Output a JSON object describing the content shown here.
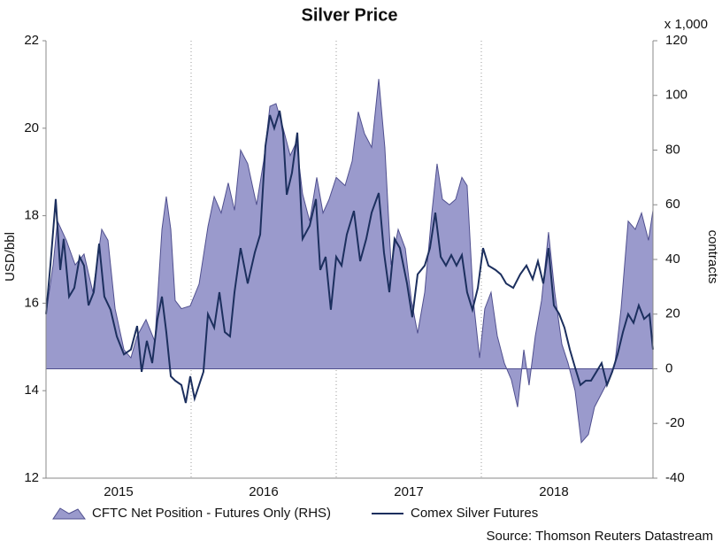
{
  "chart_data": {
    "type": "combo",
    "title": "Silver Price",
    "ylabel": "USD/bbl",
    "y2label": "contracts",
    "y2unit": "x 1,000",
    "source": "Source: Thomson Reuters Datastream",
    "xlim": [
      2015,
      2019.183
    ],
    "xticks": [
      2015,
      2016,
      2017,
      2018
    ],
    "ylim": [
      12,
      22
    ],
    "yticks": [
      12,
      14,
      16,
      18,
      20,
      22
    ],
    "y2lim": [
      -40,
      120
    ],
    "y2ticks": [
      -40,
      -20,
      0,
      20,
      40,
      60,
      80,
      100,
      120
    ],
    "grid": "x",
    "legend": "bottom",
    "series": [
      {
        "name": "CFTC Net Position - Futures Only (RHS)",
        "type": "area",
        "axis": "y2",
        "color": "#9a9acc",
        "edge": "#50508f",
        "x": [
          2015.0,
          2015.049,
          2015.079,
          2015.14,
          2015.201,
          2015.262,
          2015.323,
          2015.384,
          2015.427,
          2015.476,
          2015.537,
          2015.585,
          2015.628,
          2015.689,
          2015.75,
          2015.799,
          2015.829,
          2015.86,
          2015.89,
          2015.933,
          2015.994,
          2016.055,
          2016.116,
          2016.159,
          2016.207,
          2016.256,
          2016.299,
          2016.341,
          2016.39,
          2016.451,
          2016.5,
          2016.543,
          2016.585,
          2016.634,
          2016.683,
          2016.726,
          2016.768,
          2016.817,
          2016.866,
          2016.909,
          2016.951,
          2017.0,
          2017.061,
          2017.11,
          2017.152,
          2017.195,
          2017.244,
          2017.293,
          2017.335,
          2017.378,
          2017.427,
          2017.476,
          2017.518,
          2017.561,
          2017.61,
          2017.659,
          2017.695,
          2017.732,
          2017.78,
          2017.823,
          2017.866,
          2017.902,
          2017.945,
          2017.988,
          2018.024,
          2018.067,
          2018.11,
          2018.159,
          2018.207,
          2018.25,
          2018.293,
          2018.329,
          2018.372,
          2018.415,
          2018.463,
          2018.506,
          2018.555,
          2018.598,
          2018.646,
          2018.689,
          2018.738,
          2018.78,
          2018.829,
          2018.878,
          2018.921,
          2018.963,
          2019.012,
          2019.061,
          2019.104,
          2019.152,
          2019.183
        ],
        "values": [
          20,
          38,
          54,
          47,
          38,
          42,
          28,
          51,
          47,
          22,
          7,
          4,
          12,
          18,
          10,
          51,
          63,
          51,
          25,
          22,
          23,
          31,
          52,
          63,
          57,
          68,
          58,
          80,
          75,
          60,
          76,
          96,
          97,
          88,
          78,
          83,
          64,
          54,
          70,
          57,
          62,
          70,
          67,
          76,
          94,
          86,
          81,
          106,
          81,
          38,
          51,
          44,
          25,
          13,
          28,
          57,
          75,
          62,
          60,
          62,
          70,
          67,
          25,
          4,
          22,
          28,
          12,
          2,
          -4,
          -14,
          7,
          -6,
          12,
          25,
          50,
          28,
          9,
          2,
          -8,
          -27,
          -24,
          -14,
          -9,
          -4,
          2,
          22,
          54,
          51,
          57,
          47,
          58
        ]
      },
      {
        "name": "Comex Silver Futures",
        "type": "line",
        "axis": "y",
        "color": "#1c2f5e",
        "x": [
          2015.0,
          2015.03,
          2015.067,
          2015.098,
          2015.122,
          2015.159,
          2015.195,
          2015.232,
          2015.262,
          2015.293,
          2015.329,
          2015.366,
          2015.402,
          2015.445,
          2015.488,
          2015.537,
          2015.585,
          2015.628,
          2015.659,
          2015.695,
          2015.732,
          2015.768,
          2015.799,
          2015.829,
          2015.86,
          2015.89,
          2015.933,
          2015.963,
          2015.994,
          2016.024,
          2016.055,
          2016.085,
          2016.116,
          2016.159,
          2016.195,
          2016.232,
          2016.268,
          2016.299,
          2016.341,
          2016.39,
          2016.439,
          2016.476,
          2016.512,
          2016.543,
          2016.573,
          2016.61,
          2016.634,
          2016.659,
          2016.695,
          2016.732,
          2016.768,
          2016.817,
          2016.86,
          2016.89,
          2016.927,
          2016.963,
          2017.0,
          2017.037,
          2017.073,
          2017.122,
          2017.165,
          2017.207,
          2017.244,
          2017.293,
          2017.329,
          2017.366,
          2017.402,
          2017.439,
          2017.488,
          2017.524,
          2017.561,
          2017.61,
          2017.646,
          2017.683,
          2017.72,
          2017.756,
          2017.793,
          2017.829,
          2017.866,
          2017.902,
          2017.939,
          2017.976,
          2018.012,
          2018.049,
          2018.098,
          2018.134,
          2018.171,
          2018.22,
          2018.268,
          2018.311,
          2018.354,
          2018.39,
          2018.427,
          2018.463,
          2018.5,
          2018.537,
          2018.573,
          2018.61,
          2018.646,
          2018.683,
          2018.72,
          2018.756,
          2018.793,
          2018.829,
          2018.866,
          2018.902,
          2018.939,
          2018.976,
          2019.012,
          2019.049,
          2019.085,
          2019.122,
          2019.159,
          2019.183
        ],
        "values": [
          15.75,
          16.86,
          18.38,
          16.76,
          17.47,
          16.15,
          16.35,
          17.06,
          16.86,
          15.95,
          16.25,
          17.36,
          16.15,
          15.85,
          15.24,
          14.83,
          14.94,
          15.48,
          14.43,
          15.14,
          14.63,
          15.64,
          16.15,
          15.34,
          14.33,
          14.23,
          14.13,
          13.72,
          14.33,
          13.82,
          14.13,
          14.43,
          15.75,
          15.44,
          16.25,
          15.34,
          15.24,
          16.25,
          17.26,
          16.45,
          17.16,
          17.57,
          19.59,
          20.3,
          20.0,
          20.4,
          19.9,
          18.48,
          18.98,
          19.9,
          17.47,
          17.77,
          18.38,
          16.76,
          17.06,
          15.85,
          17.06,
          16.86,
          17.57,
          18.11,
          16.96,
          17.47,
          18.07,
          18.52,
          17.16,
          16.25,
          17.47,
          17.26,
          16.45,
          15.68,
          16.66,
          16.86,
          17.26,
          18.07,
          17.06,
          16.86,
          17.1,
          16.86,
          17.1,
          16.25,
          15.85,
          16.35,
          17.26,
          16.86,
          16.76,
          16.66,
          16.45,
          16.35,
          16.66,
          16.86,
          16.55,
          16.96,
          16.45,
          17.26,
          15.95,
          15.75,
          15.44,
          14.94,
          14.53,
          14.13,
          14.23,
          14.23,
          14.43,
          14.63,
          14.13,
          14.43,
          14.83,
          15.34,
          15.75,
          15.55,
          15.95,
          15.64,
          15.75,
          14.94
        ]
      }
    ]
  }
}
